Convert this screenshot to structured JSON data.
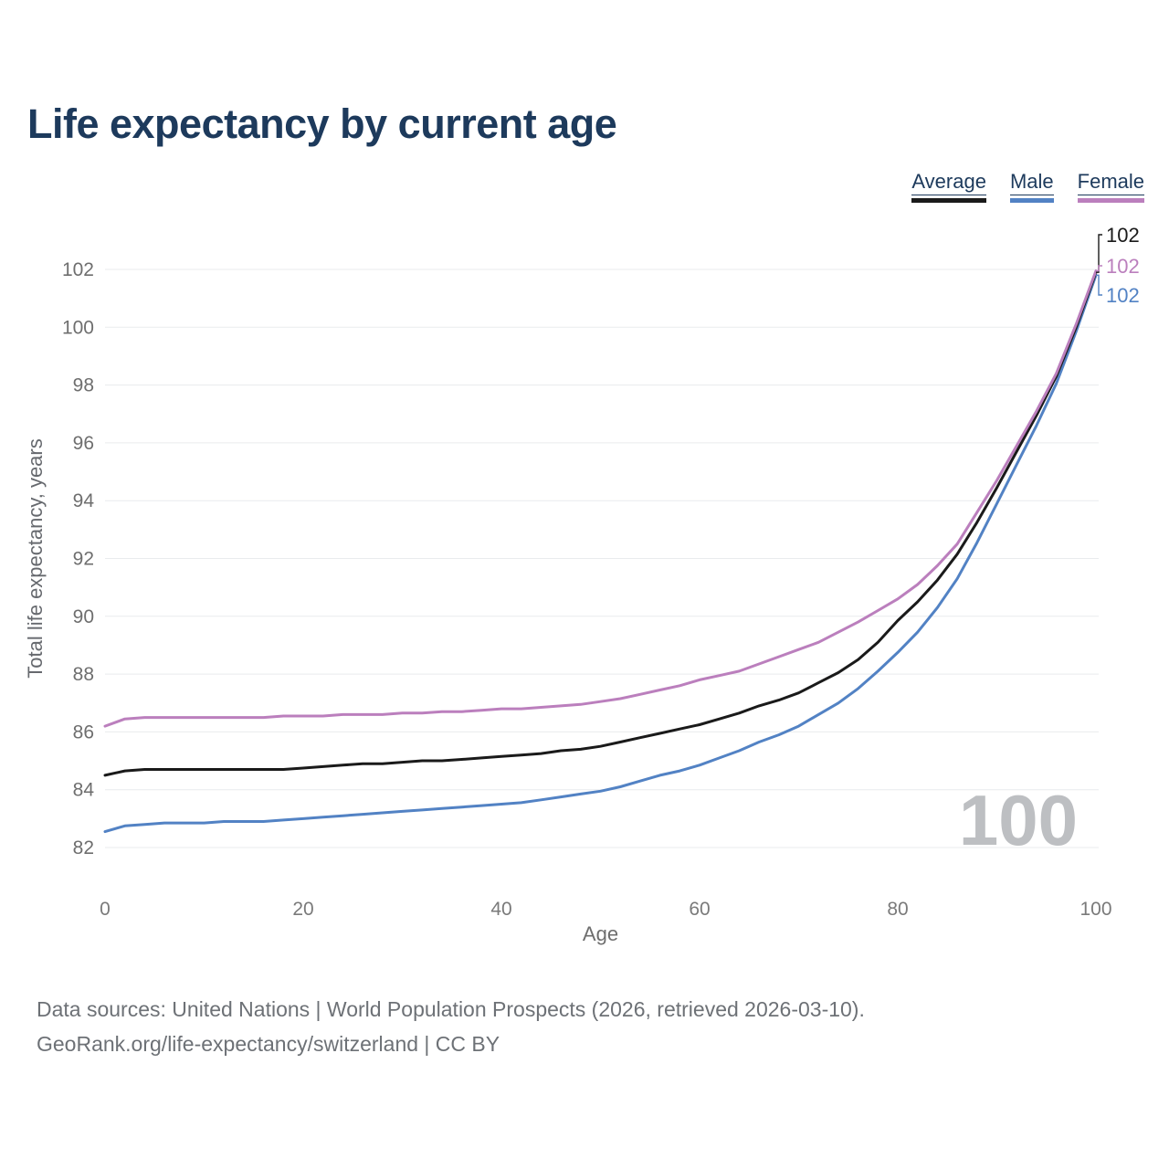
{
  "title": "Life expectancy by current age",
  "legend": [
    {
      "label": "Average",
      "color": "#1a1a1a"
    },
    {
      "label": "Male",
      "color": "#5282c4"
    },
    {
      "label": "Female",
      "color": "#bb7fbd"
    }
  ],
  "chart_data": {
    "type": "line",
    "title": "Life expectancy by current age",
    "xlabel": "Age",
    "ylabel": "Total life expectancy, years",
    "xlim": [
      0,
      100
    ],
    "ylim": [
      82,
      102
    ],
    "x_ticks": [
      0,
      20,
      40,
      60,
      80,
      100
    ],
    "y_ticks": [
      82,
      84,
      86,
      88,
      90,
      92,
      94,
      96,
      98,
      100,
      102
    ],
    "grid": "horizontal",
    "legend_position": "top-right",
    "watermark": "100",
    "x": [
      0,
      2,
      4,
      6,
      8,
      10,
      12,
      14,
      16,
      18,
      20,
      22,
      24,
      26,
      28,
      30,
      32,
      34,
      36,
      38,
      40,
      42,
      44,
      46,
      48,
      50,
      52,
      54,
      56,
      58,
      60,
      62,
      64,
      66,
      68,
      70,
      72,
      74,
      76,
      78,
      80,
      82,
      84,
      86,
      88,
      90,
      92,
      94,
      96,
      98,
      100
    ],
    "series": [
      {
        "name": "Average",
        "color": "#1a1a1a",
        "end_label": "102",
        "values": [
          84.5,
          84.65,
          84.7,
          84.7,
          84.7,
          84.7,
          84.7,
          84.7,
          84.7,
          84.7,
          84.75,
          84.8,
          84.85,
          84.9,
          84.9,
          84.95,
          85.0,
          85.0,
          85.05,
          85.1,
          85.15,
          85.2,
          85.25,
          85.35,
          85.4,
          85.5,
          85.65,
          85.8,
          85.95,
          86.1,
          86.25,
          86.45,
          86.65,
          86.9,
          87.1,
          87.35,
          87.7,
          88.05,
          88.5,
          89.1,
          89.85,
          90.5,
          91.25,
          92.15,
          93.25,
          94.45,
          95.7,
          96.95,
          98.3,
          100.0,
          101.9
        ]
      },
      {
        "name": "Male",
        "color": "#5282c4",
        "end_label": "102",
        "values": [
          82.55,
          82.75,
          82.8,
          82.85,
          82.85,
          82.85,
          82.9,
          82.9,
          82.9,
          82.95,
          83.0,
          83.05,
          83.1,
          83.15,
          83.2,
          83.25,
          83.3,
          83.35,
          83.4,
          83.45,
          83.5,
          83.55,
          83.65,
          83.75,
          83.85,
          83.95,
          84.1,
          84.3,
          84.5,
          84.65,
          84.85,
          85.1,
          85.35,
          85.65,
          85.9,
          86.2,
          86.6,
          87.0,
          87.5,
          88.1,
          88.75,
          89.45,
          90.3,
          91.3,
          92.55,
          93.9,
          95.25,
          96.6,
          98.05,
          99.85,
          101.8
        ]
      },
      {
        "name": "Female",
        "color": "#bb7fbd",
        "end_label": "102",
        "values": [
          86.2,
          86.45,
          86.5,
          86.5,
          86.5,
          86.5,
          86.5,
          86.5,
          86.5,
          86.55,
          86.55,
          86.55,
          86.6,
          86.6,
          86.6,
          86.65,
          86.65,
          86.7,
          86.7,
          86.75,
          86.8,
          86.8,
          86.85,
          86.9,
          86.95,
          87.05,
          87.15,
          87.3,
          87.45,
          87.6,
          87.8,
          87.95,
          88.1,
          88.35,
          88.6,
          88.85,
          89.1,
          89.45,
          89.8,
          90.2,
          90.6,
          91.1,
          91.75,
          92.5,
          93.6,
          94.7,
          95.9,
          97.1,
          98.4,
          100.1,
          101.95
        ]
      }
    ]
  },
  "footer": {
    "line1": "Data sources: United Nations | World Population Prospects (2026, retrieved 2026-03-10).",
    "line2": "GeoRank.org/life-expectancy/switzerland | CC BY"
  }
}
